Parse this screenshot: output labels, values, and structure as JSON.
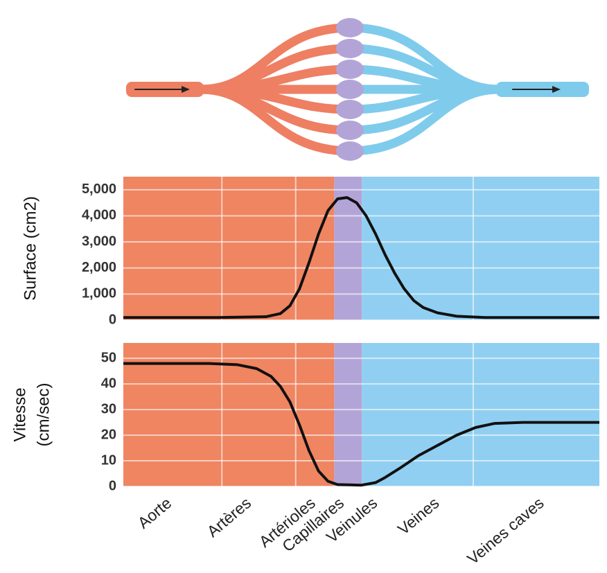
{
  "chart_data": [
    {
      "type": "line",
      "y_label": "Surface (cm2)",
      "xlim": [
        0,
        100
      ],
      "ylim": [
        0,
        5500
      ],
      "yticks": [
        0,
        {
          "value": 1000,
          "label": "1,000"
        },
        {
          "value": 2000,
          "label": "2,000"
        },
        {
          "value": 3000,
          "label": "3,000"
        },
        {
          "value": 4000,
          "label": "4,000"
        },
        {
          "value": 5000,
          "label": "5,000"
        }
      ],
      "xgrid": [
        20.7,
        36.2,
        73.5
      ],
      "grid": true,
      "regions": [
        {
          "from": 0,
          "to": 44.3,
          "color": "#ef8561"
        },
        {
          "from": 44.3,
          "to": 50.1,
          "color": "#b3a4d8"
        },
        {
          "from": 50.1,
          "to": 100,
          "color": "#90cff1"
        }
      ],
      "color": "#111111",
      "x": [
        0,
        20,
        30,
        33,
        35,
        37,
        39,
        41,
        43,
        45,
        47,
        49,
        51,
        53,
        55,
        57,
        59,
        61,
        63,
        66,
        70,
        76,
        100
      ],
      "values": [
        100,
        100,
        130,
        250,
        550,
        1200,
        2200,
        3300,
        4200,
        4650,
        4700,
        4500,
        4000,
        3300,
        2500,
        1800,
        1200,
        750,
        480,
        280,
        150,
        100,
        100
      ]
    },
    {
      "type": "line",
      "y_label": [
        "Vitesse",
        "(cm/sec)"
      ],
      "xlim": [
        0,
        100
      ],
      "ylim": [
        0,
        56
      ],
      "yticks": [
        0,
        10,
        20,
        30,
        40,
        50
      ],
      "xgrid": [
        20.7,
        36.2,
        73.5
      ],
      "xticks": [
        {
          "value": 9.8,
          "label": "Aorte"
        },
        {
          "value": 26.5,
          "label": "Artères"
        },
        {
          "value": 40,
          "label": "Artérioles"
        },
        {
          "value": 46,
          "label": "Capillaires"
        },
        {
          "value": 53,
          "label": "Veinules"
        },
        {
          "value": 66,
          "label": "Veines"
        },
        {
          "value": 88,
          "label": "Veines caves"
        }
      ],
      "grid": true,
      "regions": [
        {
          "from": 0,
          "to": 44.3,
          "color": "#ef8561"
        },
        {
          "from": 44.3,
          "to": 50.1,
          "color": "#b3a4d8"
        },
        {
          "from": 50.1,
          "to": 100,
          "color": "#90cff1"
        }
      ],
      "color": "#111111",
      "x": [
        0,
        18,
        24,
        28,
        31,
        33,
        35,
        37,
        39,
        41,
        43,
        45,
        50,
        53,
        55,
        58,
        62,
        66,
        70,
        74,
        78,
        84,
        100
      ],
      "values": [
        48,
        48,
        47.5,
        46,
        43,
        39,
        33,
        24,
        14,
        6,
        2,
        0.7,
        0.5,
        1.5,
        3.5,
        7,
        12,
        16,
        20,
        23,
        24.6,
        25,
        25
      ]
    }
  ]
}
